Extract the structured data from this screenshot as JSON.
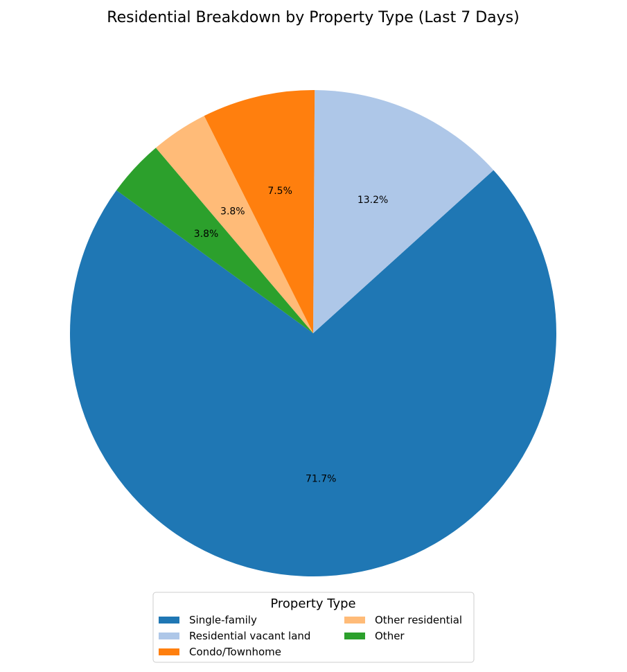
{
  "chart_data": {
    "type": "pie",
    "title": "Residential Breakdown by Property Type (Last 7 Days)",
    "legend_title": "Property Type",
    "legend_position": "bottom-center",
    "start_angle_deg": 144,
    "direction": "counterclockwise",
    "slices": [
      {
        "label": "Single-family",
        "value": 71.7,
        "pct_label": "71.7%",
        "color": "#1f77b4"
      },
      {
        "label": "Residential vacant land",
        "value": 13.2,
        "pct_label": "13.2%",
        "color": "#aec7e8"
      },
      {
        "label": "Condo/Townhome",
        "value": 7.5,
        "pct_label": "7.5%",
        "color": "#ff7f0e"
      },
      {
        "label": "Other residential",
        "value": 3.8,
        "pct_label": "3.8%",
        "color": "#ffbb78"
      },
      {
        "label": "Other",
        "value": 3.8,
        "pct_label": "3.8%",
        "color": "#2ca02c"
      }
    ]
  }
}
